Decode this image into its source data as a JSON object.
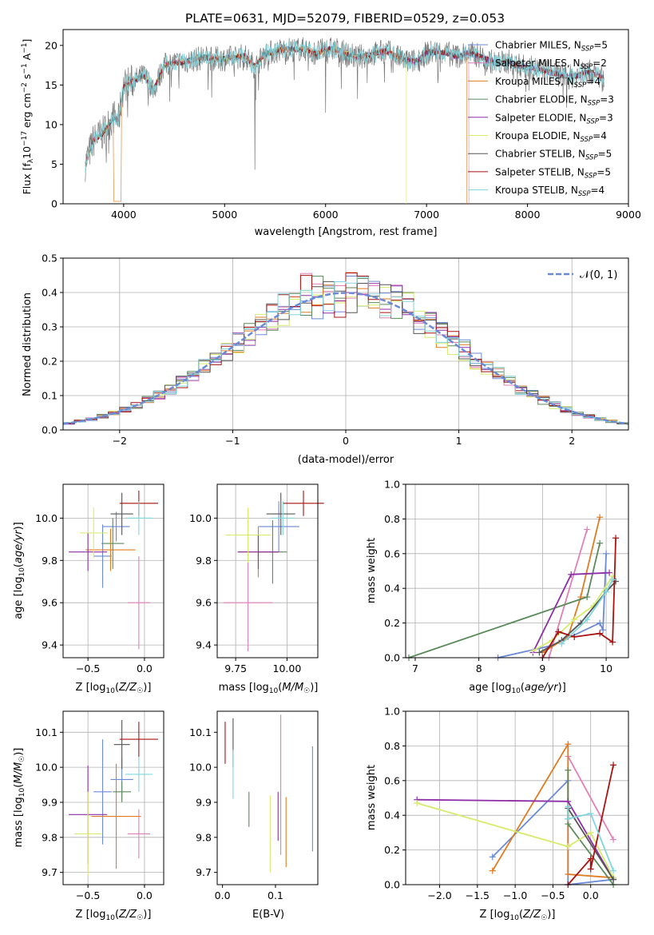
{
  "title": "PLATE=0631, MJD=52079, FIBERID=0529, z=0.053",
  "models": [
    {
      "name": "Chabrier MILES",
      "nssp": "5",
      "color": "#6a8ad8"
    },
    {
      "name": "Salpeter MILES",
      "nssp": "2",
      "color": "#e27fb8"
    },
    {
      "name": "Kroupa MILES",
      "nssp": "4",
      "color": "#e07b22"
    },
    {
      "name": "Chabrier ELODIE",
      "nssp": "3",
      "color": "#5a8a5a"
    },
    {
      "name": "Salpeter ELODIE",
      "nssp": "3",
      "color": "#8e2ea8"
    },
    {
      "name": "Kroupa ELODIE",
      "nssp": "4",
      "color": "#d4ec6a"
    },
    {
      "name": "Chabrier STELIB",
      "nssp": "5",
      "color": "#555555"
    },
    {
      "name": "Salpeter STELIB",
      "nssp": "5",
      "color": "#aa1111"
    },
    {
      "name": "Kroupa STELIB",
      "nssp": "4",
      "color": "#7fd6de"
    }
  ],
  "chart_data": [
    {
      "type": "line",
      "ylabel": "Flux [f_λ10^-17 erg cm^-2 s^-1 A^-1]",
      "xlabel": "wavelength [Angstrom, rest frame]",
      "xlim": [
        3400,
        9000
      ],
      "ylim": [
        0,
        22
      ],
      "xticks": [
        "4000",
        "5000",
        "6000",
        "7000",
        "8000",
        "9000"
      ],
      "yticks": [
        "0",
        "5",
        "10",
        "15",
        "20"
      ],
      "grid": false,
      "legend_position": "top-right",
      "series_approx": {
        "x": [
          3620,
          3700,
          3800,
          3900,
          3950,
          4000,
          4100,
          4200,
          4300,
          4400,
          4500,
          4600,
          4700,
          4800,
          4900,
          5000,
          5100,
          5200,
          5300,
          5400,
          5500,
          5600,
          5700,
          5800,
          5900,
          6000,
          6100,
          6200,
          6300,
          6400,
          6500,
          6600,
          6700,
          6800,
          6900,
          7000,
          7100,
          7200,
          7300,
          7400,
          7500,
          7600,
          7700,
          7800,
          7900,
          8000,
          8100,
          8200,
          8300,
          8400,
          8500,
          8600,
          8700,
          8760
        ],
        "y": [
          5,
          8,
          9,
          11,
          10.5,
          15,
          15.5,
          16.2,
          14.5,
          17.5,
          17.8,
          17.9,
          18.2,
          18.5,
          18.3,
          18.3,
          18.5,
          18.7,
          17.3,
          19,
          19.2,
          19.5,
          19.5,
          19.5,
          19,
          19.5,
          19.5,
          19,
          18.5,
          18.7,
          19,
          19.3,
          18.6,
          18,
          18,
          19,
          19.2,
          19,
          18.6,
          19,
          18.8,
          18.2,
          17.7,
          18,
          17.5,
          17.2,
          17.0,
          16.7,
          16.4,
          16.0,
          16.2,
          16.7,
          16.2,
          15.8
        ]
      }
    },
    {
      "type": "bar",
      "ylabel": "Normed distribution",
      "xlabel": "(data-model)/error",
      "xlim": [
        -2.5,
        2.5
      ],
      "ylim": [
        0,
        0.5
      ],
      "xticks": [
        "−2",
        "−1",
        "0",
        "1",
        "2"
      ],
      "yticks": [
        "0.0",
        "0.1",
        "0.2",
        "0.3",
        "0.4",
        "0.5"
      ],
      "grid": true,
      "legend_position": "top-right",
      "legend_label": "𝒩(0, 1)",
      "bin_width": 0.1,
      "reference": "normal distribution mean 0, sigma 1"
    },
    {
      "type": "scatter",
      "xlabel": "Z [log10(Z/Z☉)]",
      "ylabel": "age  [log10(age/yr)]",
      "xlim": [
        -0.72,
        0.17
      ],
      "ylim": [
        9.34,
        10.16
      ],
      "xticks": [
        "−0.5",
        "0.0"
      ],
      "yticks": [
        "9.4",
        "9.6",
        "9.8",
        "10.0"
      ],
      "grid": true,
      "points": [
        {
          "model": 0,
          "x": -0.37,
          "y": 9.82,
          "xerr": 0.08,
          "yerr": 0.15
        },
        {
          "model": 0,
          "x": -0.25,
          "y": 9.96,
          "xerr": 0.12,
          "yerr": 0.07
        },
        {
          "model": 1,
          "x": -0.05,
          "y": 9.6,
          "xerr": 0.1,
          "yerr": 0.22
        },
        {
          "model": 2,
          "x": -0.3,
          "y": 9.85,
          "xerr": 0.22,
          "yerr": 0.1
        },
        {
          "model": 3,
          "x": -0.28,
          "y": 9.88,
          "xerr": 0.1,
          "yerr": 0.12
        },
        {
          "model": 4,
          "x": -0.5,
          "y": 9.84,
          "xerr": 0.17,
          "yerr": 0.09
        },
        {
          "model": 5,
          "x": -0.45,
          "y": 9.93,
          "xerr": 0.12,
          "yerr": 0.12
        },
        {
          "model": 6,
          "x": -0.2,
          "y": 10.02,
          "xerr": 0.1,
          "yerr": 0.1
        },
        {
          "model": 7,
          "x": -0.05,
          "y": 10.07,
          "xerr": 0.17,
          "yerr": 0.06
        },
        {
          "model": 8,
          "x": -0.05,
          "y": 10.0,
          "xerr": 0.12,
          "yerr": 0.08
        }
      ]
    },
    {
      "type": "scatter",
      "xlabel": "mass [log10(M/M☉)]",
      "ylabel": "",
      "xlim": [
        9.66,
        10.15
      ],
      "ylim": [
        9.34,
        10.16
      ],
      "xticks": [
        "9.75",
        "10.00"
      ],
      "yticks": [
        "9.4",
        "9.6",
        "9.8",
        "10.0"
      ],
      "grid": true,
      "points": [
        {
          "model": 0,
          "x": 9.96,
          "y": 9.96,
          "xerr": 0.1,
          "yerr": 0.12
        },
        {
          "model": 1,
          "x": 9.81,
          "y": 9.6,
          "xerr": 0.12,
          "yerr": 0.23
        },
        {
          "model": 2,
          "x": 9.86,
          "y": 9.84,
          "xerr": 0.1,
          "yerr": 0.12
        },
        {
          "model": 3,
          "x": 9.93,
          "y": 9.84,
          "xerr": 0.07,
          "yerr": 0.15
        },
        {
          "model": 4,
          "x": 9.86,
          "y": 9.84,
          "xerr": 0.1,
          "yerr": 0.08
        },
        {
          "model": 5,
          "x": 9.81,
          "y": 9.92,
          "xerr": 0.11,
          "yerr": 0.13
        },
        {
          "model": 6,
          "x": 9.97,
          "y": 10.02,
          "xerr": 0.07,
          "yerr": 0.1
        },
        {
          "model": 7,
          "x": 10.08,
          "y": 10.07,
          "xerr": 0.1,
          "yerr": 0.06
        },
        {
          "model": 8,
          "x": 9.98,
          "y": 10.0,
          "xerr": 0.06,
          "yerr": 0.08
        }
      ]
    },
    {
      "type": "line",
      "xlabel": "age  [log10(age/yr)]",
      "ylabel": "mass weight",
      "xlim": [
        6.85,
        10.35
      ],
      "ylim": [
        0,
        1.0
      ],
      "xticks": [
        "7",
        "8",
        "9",
        "10"
      ],
      "yticks": [
        "0.0",
        "0.2",
        "0.4",
        "0.6",
        "0.8",
        "1.0"
      ],
      "grid": true,
      "series": [
        {
          "model": 0,
          "x": [
            8.3,
            9.15,
            9.9,
            9.95,
            10.0
          ],
          "y": [
            0.0,
            0.07,
            0.2,
            0.16,
            0.6
          ]
        },
        {
          "model": 1,
          "x": [
            9.1,
            9.7
          ],
          "y": [
            0.0,
            0.74
          ]
        },
        {
          "model": 2,
          "x": [
            9.0,
            9.4,
            9.6,
            9.9
          ],
          "y": [
            0.03,
            0.12,
            0.35,
            0.81
          ]
        },
        {
          "model": 3,
          "x": [
            6.9,
            9.7,
            9.9
          ],
          "y": [
            0.0,
            0.35,
            0.66
          ]
        },
        {
          "model": 4,
          "x": [
            8.85,
            9.45,
            10.05
          ],
          "y": [
            0.03,
            0.48,
            0.49
          ]
        },
        {
          "model": 5,
          "x": [
            8.85,
            9.15,
            9.5,
            9.8,
            10.1
          ],
          "y": [
            0.04,
            0.1,
            0.22,
            0.3,
            0.47
          ]
        },
        {
          "model": 6,
          "x": [
            8.95,
            9.3,
            9.6,
            10.0,
            10.15
          ],
          "y": [
            0.03,
            0.1,
            0.2,
            0.38,
            0.44
          ]
        },
        {
          "model": 7,
          "x": [
            9.0,
            9.25,
            9.5,
            9.9,
            10.1,
            10.15
          ],
          "y": [
            0.0,
            0.15,
            0.12,
            0.14,
            0.09,
            0.69
          ]
        },
        {
          "model": 8,
          "x": [
            9.3,
            9.7,
            10.0,
            10.1
          ],
          "y": [
            0.08,
            0.22,
            0.38,
            0.45
          ]
        }
      ]
    },
    {
      "type": "scatter",
      "xlabel": "Z [log10(Z/Z☉)]",
      "ylabel": "mass [log10(M/M☉)]",
      "xlim": [
        -0.72,
        0.17
      ],
      "ylim": [
        9.665,
        10.16
      ],
      "xticks": [
        "−0.5",
        "0.0"
      ],
      "yticks": [
        "9.7",
        "9.8",
        "9.9",
        "10.0",
        "10.1"
      ],
      "grid": true,
      "points": [
        {
          "model": 0,
          "x": -0.37,
          "y": 9.93,
          "xerr": 0.08,
          "yerr": 0.15
        },
        {
          "model": 0,
          "x": -0.2,
          "y": 9.965,
          "xerr": 0.1,
          "yerr": 0.06
        },
        {
          "model": 1,
          "x": -0.05,
          "y": 9.81,
          "xerr": 0.1,
          "yerr": 0.07
        },
        {
          "model": 2,
          "x": -0.25,
          "y": 9.86,
          "xerr": 0.22,
          "yerr": 0.15
        },
        {
          "model": 3,
          "x": -0.2,
          "y": 9.93,
          "xerr": 0.08,
          "yerr": 0.03
        },
        {
          "model": 4,
          "x": -0.5,
          "y": 9.865,
          "xerr": 0.17,
          "yerr": 0.14
        },
        {
          "model": 5,
          "x": -0.5,
          "y": 9.81,
          "xerr": 0.12,
          "yerr": 0.12
        },
        {
          "model": 6,
          "x": -0.2,
          "y": 10.065,
          "xerr": 0.07,
          "yerr": 0.07
        },
        {
          "model": 7,
          "x": -0.05,
          "y": 10.08,
          "xerr": 0.17,
          "yerr": 0.05
        },
        {
          "model": 8,
          "x": -0.05,
          "y": 9.98,
          "xerr": 0.12,
          "yerr": 0.05
        }
      ]
    },
    {
      "type": "scatter",
      "xlabel": "E(B-V)",
      "ylabel": "",
      "xlim": [
        -0.01,
        0.18
      ],
      "ylim": [
        9.665,
        10.16
      ],
      "xticks": [
        "0.0",
        "0.1"
      ],
      "yticks": [
        "9.7",
        "9.8",
        "9.9",
        "10.0",
        "10.1"
      ],
      "grid": false,
      "points": [
        {
          "model": 0,
          "x": 0.17,
          "y": 9.91,
          "yerr": 0.15
        },
        {
          "model": 1,
          "x": 0.11,
          "y": 9.95,
          "yerr": 0.2
        },
        {
          "model": 2,
          "x": 0.12,
          "y": 9.815,
          "yerr": 0.1
        },
        {
          "model": 3,
          "x": 0.05,
          "y": 9.88,
          "yerr": 0.05
        },
        {
          "model": 4,
          "x": 0.105,
          "y": 9.86,
          "yerr": 0.07
        },
        {
          "model": 5,
          "x": 0.09,
          "y": 9.81,
          "yerr": 0.11
        },
        {
          "model": 6,
          "x": 0.02,
          "y": 10.07,
          "yerr": 0.07
        },
        {
          "model": 7,
          "x": 0.005,
          "y": 10.07,
          "yerr": 0.06
        },
        {
          "model": 8,
          "x": 0.02,
          "y": 9.98,
          "yerr": 0.07
        }
      ]
    },
    {
      "type": "line",
      "xlabel": "Z [log10(Z/Z☉)]",
      "ylabel": "mass weight",
      "xlim": [
        -2.45,
        0.5
      ],
      "ylim": [
        0,
        1.0
      ],
      "xticks": [
        "−2.0",
        "−1.5",
        "−1.0",
        "−0.5",
        "0.0"
      ],
      "yticks": [
        "0.0",
        "0.2",
        "0.4",
        "0.6",
        "0.8",
        "1.0"
      ],
      "grid": true,
      "series": [
        {
          "model": 0,
          "x": [
            -1.3,
            -0.3,
            -0.3,
            0.3
          ],
          "y": [
            0.16,
            0.6,
            0.0,
            0.03
          ]
        },
        {
          "model": 1,
          "x": [
            -0.3,
            0.3
          ],
          "y": [
            0.74,
            0.26
          ]
        },
        {
          "model": 2,
          "x": [
            -1.3,
            -0.3,
            -0.3,
            0.3
          ],
          "y": [
            0.08,
            0.81,
            0.06,
            0.04
          ]
        },
        {
          "model": 3,
          "x": [
            -0.3,
            -0.3,
            0.3
          ],
          "y": [
            0.66,
            0.35,
            0.0
          ]
        },
        {
          "model": 4,
          "x": [
            -2.3,
            -0.3,
            0.3
          ],
          "y": [
            0.49,
            0.48,
            0.03
          ]
        },
        {
          "model": 5,
          "x": [
            -2.3,
            -0.3,
            0.0,
            0.3
          ],
          "y": [
            0.47,
            0.22,
            0.3,
            0.04
          ]
        },
        {
          "model": 6,
          "x": [
            -0.3,
            -0.3,
            0.3
          ],
          "y": [
            0.38,
            0.44,
            0.03
          ]
        },
        {
          "model": 7,
          "x": [
            -0.3,
            0.0,
            0.0,
            0.3
          ],
          "y": [
            0.0,
            0.15,
            0.09,
            0.69
          ]
        },
        {
          "model": 8,
          "x": [
            -0.3,
            -0.3,
            0.0,
            0.3
          ],
          "y": [
            0.45,
            0.38,
            0.41,
            0.08
          ]
        }
      ]
    }
  ]
}
